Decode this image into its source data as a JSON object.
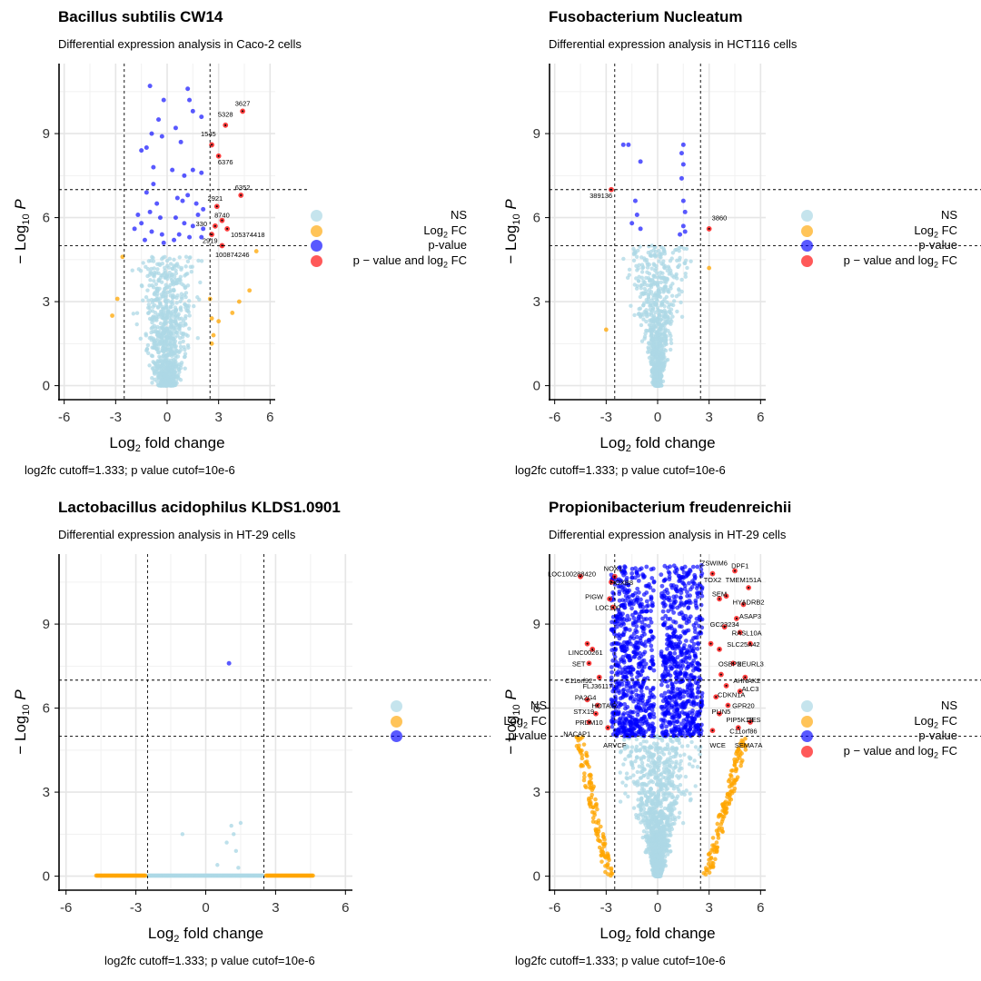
{
  "colors": {
    "ns": "#add8e6",
    "fc": "#ffa500",
    "p": "#0000ff",
    "both": "#ff0000"
  },
  "legend_labels": {
    "ns": "NS",
    "fc": "Log2 FC",
    "p": "p-value",
    "both": "p − value and log2 FC"
  },
  "chart_data": [
    {
      "type": "scatter",
      "title": "Bacillus subtilis CW14",
      "subtitle": "Differential expression analysis in Caco-2 cells",
      "caption": "log2fc cutoff=1.333; p value cutof=10e-6",
      "xlabel": "Log2 fold change",
      "ylabel": "−Log10 P",
      "xlim": [
        -6.3,
        6.3
      ],
      "ylim": [
        -0.5,
        11.5
      ],
      "x_ticks": [
        "-6",
        "-3",
        "0",
        "3",
        "6"
      ],
      "y_ticks": [
        "0",
        "3",
        "6",
        "9"
      ],
      "vlines": [
        -2.5,
        2.5
      ],
      "hlines": [
        5.0,
        7.0
      ],
      "grid": true,
      "legend_position": "right",
      "legend": [
        "NS",
        "Log2 FC",
        "p-value",
        "p − value and log2 FC"
      ],
      "groups": {
        "ns": {
          "spread": 1.2,
          "max_y": 4.6
        },
        "fc": [
          [
            -3.2,
            2.5
          ],
          [
            -2.9,
            3.1
          ],
          [
            -2.6,
            4.6
          ],
          [
            2.6,
            1.5
          ],
          [
            2.7,
            1.8
          ],
          [
            3.0,
            2.3
          ],
          [
            3.8,
            2.6
          ],
          [
            4.2,
            3.0
          ],
          [
            4.8,
            3.4
          ],
          [
            5.2,
            4.8
          ],
          [
            2.5,
            3.1
          ],
          [
            2.6,
            2.4
          ]
        ],
        "p": [
          [
            -1.0,
            10.7
          ],
          [
            -0.2,
            10.2
          ],
          [
            -0.5,
            9.5
          ],
          [
            0.5,
            9.2
          ],
          [
            1.2,
            10.6
          ],
          [
            1.3,
            10.2
          ],
          [
            -0.9,
            9.0
          ],
          [
            -0.3,
            8.9
          ],
          [
            -1.2,
            8.5
          ],
          [
            0.8,
            8.7
          ],
          [
            1.5,
            9.8
          ],
          [
            2.0,
            9.6
          ],
          [
            -1.5,
            8.4
          ],
          [
            -0.8,
            7.8
          ],
          [
            0.3,
            7.7
          ],
          [
            1.0,
            7.5
          ],
          [
            1.5,
            7.7
          ],
          [
            2.0,
            7.6
          ],
          [
            -1.2,
            6.9
          ],
          [
            -0.6,
            6.5
          ],
          [
            0.6,
            6.7
          ],
          [
            1.2,
            6.8
          ],
          [
            1.7,
            6.5
          ],
          [
            2.1,
            6.3
          ],
          [
            -1.0,
            6.2
          ],
          [
            -0.4,
            6.0
          ],
          [
            0.5,
            6.0
          ],
          [
            1.0,
            5.8
          ],
          [
            1.5,
            5.7
          ],
          [
            2.1,
            5.6
          ],
          [
            -1.5,
            5.8
          ],
          [
            -0.9,
            5.5
          ],
          [
            -0.3,
            5.4
          ],
          [
            0.7,
            5.4
          ],
          [
            1.3,
            5.3
          ],
          [
            2.0,
            5.3
          ],
          [
            -1.3,
            5.2
          ],
          [
            -0.2,
            5.1
          ],
          [
            0.4,
            5.2
          ],
          [
            -1.7,
            6.1
          ],
          [
            -1.9,
            5.6
          ],
          [
            1.8,
            6.1
          ],
          [
            -0.8,
            7.2
          ],
          [
            0.9,
            6.6
          ]
        ],
        "both": [
          [
            4.4,
            9.8
          ],
          [
            3.4,
            9.3
          ],
          [
            2.6,
            8.6
          ],
          [
            3.0,
            8.2
          ],
          [
            4.3,
            6.8
          ],
          [
            2.9,
            6.4
          ],
          [
            3.2,
            5.9
          ],
          [
            2.8,
            5.7
          ],
          [
            3.5,
            5.6
          ],
          [
            2.6,
            5.4
          ],
          [
            3.2,
            5.0
          ]
        ]
      },
      "labels": [
        {
          "text": "3627",
          "x": 4.4,
          "y": 10.0
        },
        {
          "text": "5328",
          "x": 3.4,
          "y": 9.6
        },
        {
          "text": "1545",
          "x": 2.4,
          "y": 8.9
        },
        {
          "text": "6376",
          "x": 3.4,
          "y": 7.9
        },
        {
          "text": "6352",
          "x": 4.4,
          "y": 7.0
        },
        {
          "text": "2921",
          "x": 2.8,
          "y": 6.6
        },
        {
          "text": "8740",
          "x": 3.2,
          "y": 6.0
        },
        {
          "text": "330",
          "x": 2.0,
          "y": 5.7
        },
        {
          "text": "105374418",
          "x": 4.7,
          "y": 5.3
        },
        {
          "text": "2919",
          "x": 2.5,
          "y": 5.1
        },
        {
          "text": "100874246",
          "x": 3.8,
          "y": 4.6
        }
      ]
    },
    {
      "type": "scatter",
      "title": "Fusobacterium Nucleatum",
      "subtitle": "Differential expression analysis in HCT116 cells",
      "caption": "log2fc cutoff=1.333; p value cutof=10e-6",
      "xlabel": "Log2 fold change",
      "ylabel": "−Log10 P",
      "xlim": [
        -6.3,
        6.3
      ],
      "ylim": [
        -0.5,
        11.5
      ],
      "x_ticks": [
        "-6",
        "-3",
        "0",
        "3",
        "6"
      ],
      "y_ticks": [
        "0",
        "3",
        "6",
        "9"
      ],
      "vlines": [
        -2.5,
        2.5
      ],
      "hlines": [
        5.0,
        7.0
      ],
      "grid": true,
      "legend_position": "right",
      "legend": [
        "NS",
        "Log2 FC",
        "p-value",
        "p − value and log2 FC"
      ],
      "groups": {
        "ns": {
          "spread": 1.6,
          "max_y": 5.0,
          "v_shape": true
        },
        "fc": [
          [
            -3.0,
            2.0
          ],
          [
            3.0,
            4.2
          ]
        ],
        "p": [
          [
            -2.0,
            8.6
          ],
          [
            -1.7,
            8.6
          ],
          [
            -1.0,
            8.0
          ],
          [
            -1.3,
            6.6
          ],
          [
            -1.2,
            6.1
          ],
          [
            -1.0,
            5.6
          ],
          [
            -1.5,
            5.8
          ],
          [
            1.5,
            8.6
          ],
          [
            1.4,
            8.3
          ],
          [
            1.5,
            7.9
          ],
          [
            1.4,
            7.4
          ],
          [
            1.5,
            6.6
          ],
          [
            1.6,
            6.2
          ],
          [
            1.5,
            5.7
          ],
          [
            1.3,
            5.4
          ],
          [
            1.6,
            5.5
          ]
        ],
        "both": [
          [
            -2.7,
            7.0
          ],
          [
            3.0,
            5.6
          ]
        ]
      },
      "labels": [
        {
          "text": "389136",
          "x": -3.3,
          "y": 6.7
        },
        {
          "text": "3860",
          "x": 3.6,
          "y": 5.9
        }
      ]
    },
    {
      "type": "scatter",
      "title": "Lactobacillus acidophilus KLDS1.0901",
      "subtitle": "Differential expression analysis in HT-29 cells",
      "caption": "log2fc cutoff=1.333; p value cutof=10e-6",
      "xlabel": "Log2 fold change",
      "ylabel": "−Log10 P",
      "xlim": [
        -6.3,
        6.3
      ],
      "ylim": [
        -0.5,
        11.5
      ],
      "x_ticks": [
        "-6",
        "-3",
        "0",
        "3",
        "6"
      ],
      "y_ticks": [
        "0",
        "3",
        "6",
        "9"
      ],
      "vlines": [
        -2.5,
        2.5
      ],
      "hlines": [
        5.0,
        7.0
      ],
      "grid": true,
      "legend_position": "right",
      "legend": [
        "NS",
        "Log2 FC",
        "p-value"
      ],
      "groups": {
        "ns_line": {
          "from": -2.5,
          "to": 2.5,
          "y": 0.02
        },
        "ns": [
          [
            -1.0,
            1.5
          ],
          [
            1.1,
            1.8
          ],
          [
            1.5,
            1.9
          ],
          [
            1.2,
            1.5
          ],
          [
            0.9,
            1.2
          ],
          [
            1.3,
            0.9
          ],
          [
            0.5,
            0.4
          ],
          [
            1.4,
            0.3
          ]
        ],
        "fc_line": [
          [
            -4.7,
            -2.6
          ],
          [
            2.6,
            4.6
          ]
        ],
        "p": [
          [
            1.0,
            7.6
          ]
        ],
        "both": []
      },
      "labels": []
    },
    {
      "type": "scatter",
      "title": "Propionibacterium freudenreichii",
      "subtitle": "Differential expression analysis in HT-29 cells",
      "caption": "log2fc cutoff=1.333; p value cutof=10e-6",
      "xlabel": "Log2 fold change",
      "ylabel": "−Log10 P",
      "xlim": [
        -6.3,
        6.3
      ],
      "ylim": [
        -0.5,
        11.5
      ],
      "x_ticks": [
        "-6",
        "-3",
        "0",
        "3",
        "6"
      ],
      "y_ticks": [
        "0",
        "3",
        "6",
        "9"
      ],
      "vlines": [
        -2.5,
        2.5
      ],
      "hlines": [
        5.0,
        7.0
      ],
      "grid": true,
      "legend_position": "right",
      "legend": [
        "NS",
        "Log2 FC",
        "p-value",
        "p − value and log2 FC"
      ],
      "groups": {
        "ns": {
          "spread": 2.1,
          "max_y": 5.0,
          "v_shape": true,
          "dense": true
        },
        "fc_band": {
          "left": [
            -5.0,
            -2.6
          ],
          "right": [
            2.6,
            5.3
          ],
          "max_y": 5.0
        },
        "p_band": {
          "left": [
            -2.7,
            -0.2
          ],
          "right": [
            0.2,
            2.6
          ],
          "min_y": 5.0,
          "max_y": 11.1
        },
        "both": [
          [
            -4.5,
            10.7
          ],
          [
            -2.7,
            10.5
          ],
          [
            -2.5,
            10.7
          ],
          [
            -2.8,
            9.9
          ],
          [
            -2.6,
            9.6
          ],
          [
            -4.1,
            8.3
          ],
          [
            -4.0,
            7.6
          ],
          [
            -3.8,
            8.1
          ],
          [
            -3.4,
            7.1
          ],
          [
            -3.5,
            6.1
          ],
          [
            -4.1,
            6.3
          ],
          [
            -4.0,
            5.5
          ],
          [
            -3.6,
            5.8
          ],
          [
            -2.9,
            5.3
          ],
          [
            3.2,
            10.8
          ],
          [
            4.5,
            10.9
          ],
          [
            5.3,
            10.3
          ],
          [
            4.0,
            10.0
          ],
          [
            3.6,
            9.9
          ],
          [
            5.0,
            9.7
          ],
          [
            4.6,
            9.2
          ],
          [
            3.9,
            8.9
          ],
          [
            3.1,
            8.3
          ],
          [
            4.8,
            8.7
          ],
          [
            5.4,
            8.3
          ],
          [
            3.6,
            8.1
          ],
          [
            4.4,
            7.6
          ],
          [
            3.7,
            7.2
          ],
          [
            5.1,
            7.1
          ],
          [
            4.0,
            6.8
          ],
          [
            3.4,
            6.4
          ],
          [
            4.8,
            6.6
          ],
          [
            4.1,
            6.1
          ],
          [
            3.6,
            5.8
          ],
          [
            4.7,
            5.3
          ],
          [
            5.4,
            5.5
          ],
          [
            3.2,
            5.2
          ]
        ]
      },
      "labels": [
        {
          "text": "ZSWIM6",
          "x": 3.3,
          "y": 11.1
        },
        {
          "text": "DPF1",
          "x": 4.8,
          "y": 11.0
        },
        {
          "text": "LOC100288420",
          "x": -5.0,
          "y": 10.7
        },
        {
          "text": "NOX1",
          "x": -2.6,
          "y": 10.9
        },
        {
          "text": "TOX2",
          "x": 3.2,
          "y": 10.5
        },
        {
          "text": "TMEM151A",
          "x": 5.0,
          "y": 10.5
        },
        {
          "text": "HOXB8",
          "x": -2.1,
          "y": 10.4
        },
        {
          "text": "SEM",
          "x": 3.6,
          "y": 10.0
        },
        {
          "text": "HYADRB2",
          "x": 5.3,
          "y": 9.7
        },
        {
          "text": "PIGW",
          "x": -3.7,
          "y": 9.9
        },
        {
          "text": "LOC100",
          "x": -2.9,
          "y": 9.5
        },
        {
          "text": "ASAP3",
          "x": 5.4,
          "y": 9.2
        },
        {
          "text": "GC23234",
          "x": 3.9,
          "y": 8.9
        },
        {
          "text": "RASL10A",
          "x": 5.2,
          "y": 8.6
        },
        {
          "text": "SLC25A42",
          "x": 5.0,
          "y": 8.2
        },
        {
          "text": "LINC00261",
          "x": -4.2,
          "y": 7.9
        },
        {
          "text": "SET",
          "x": -4.6,
          "y": 7.5
        },
        {
          "text": "NEURL3",
          "x": 5.4,
          "y": 7.5
        },
        {
          "text": "OSBP2",
          "x": 4.2,
          "y": 7.5
        },
        {
          "text": "C11orf92",
          "x": -4.6,
          "y": 6.9
        },
        {
          "text": "FLJ36117",
          "x": -3.5,
          "y": 6.7
        },
        {
          "text": "AHNAK2",
          "x": 5.2,
          "y": 6.9
        },
        {
          "text": "ALC3",
          "x": 5.4,
          "y": 6.6
        },
        {
          "text": "PA2G4",
          "x": -4.2,
          "y": 6.3
        },
        {
          "text": "CDKN1A",
          "x": 4.3,
          "y": 6.4
        },
        {
          "text": "GPR20",
          "x": 5.0,
          "y": 6.0
        },
        {
          "text": "HOTAIR",
          "x": -3.1,
          "y": 6.0
        },
        {
          "text": "STX19",
          "x": -4.3,
          "y": 5.8
        },
        {
          "text": "PLIN5",
          "x": 3.7,
          "y": 5.8
        },
        {
          "text": "PIP5K1B",
          "x": 4.8,
          "y": 5.5
        },
        {
          "text": "CES",
          "x": 5.6,
          "y": 5.5
        },
        {
          "text": "PRDM10",
          "x": -4.0,
          "y": 5.4
        },
        {
          "text": "C11orf86",
          "x": 5.0,
          "y": 5.1
        },
        {
          "text": "NACAP1",
          "x": -4.7,
          "y": 5.0
        },
        {
          "text": "ARVCF",
          "x": -2.5,
          "y": 4.6
        },
        {
          "text": "WCE",
          "x": 3.5,
          "y": 4.6
        },
        {
          "text": "SEMA7A",
          "x": 5.3,
          "y": 4.6
        }
      ]
    }
  ]
}
